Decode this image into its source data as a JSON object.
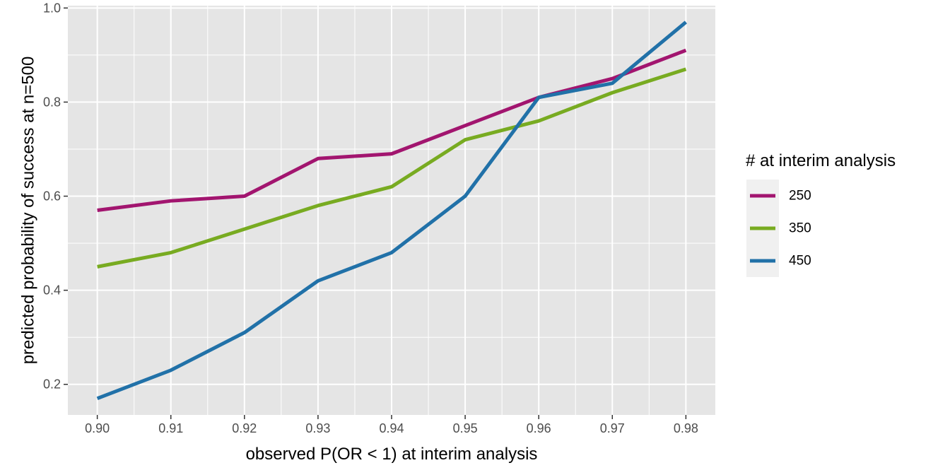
{
  "chart_data": {
    "type": "line",
    "title": "",
    "xlabel": "observed P(OR < 1) at interim analysis",
    "ylabel": "predicted probability of success at n=500",
    "x": [
      0.9,
      0.91,
      0.92,
      0.93,
      0.94,
      0.95,
      0.96,
      0.97,
      0.98
    ],
    "x_tick_labels": [
      "0.90",
      "0.91",
      "0.92",
      "0.93",
      "0.94",
      "0.95",
      "0.96",
      "0.97",
      "0.98"
    ],
    "y_ticks": [
      0.2,
      0.4,
      0.6,
      0.8,
      1.0
    ],
    "y_tick_labels": [
      "0.2",
      "0.4",
      "0.6",
      "0.8",
      "1.0"
    ],
    "xlim": [
      0.896,
      0.984
    ],
    "ylim": [
      0.135,
      1.005
    ],
    "grid": true,
    "legend": {
      "title": "# at interim analysis",
      "placement": "right"
    },
    "series": [
      {
        "name": "250",
        "color": "#A2156F",
        "values": [
          0.57,
          0.59,
          0.6,
          0.68,
          0.69,
          0.75,
          0.81,
          0.85,
          0.91
        ]
      },
      {
        "name": "350",
        "color": "#78AB21",
        "values": [
          0.45,
          0.48,
          0.53,
          0.58,
          0.62,
          0.72,
          0.76,
          0.82,
          0.87
        ]
      },
      {
        "name": "450",
        "color": "#2171A8",
        "values": [
          0.17,
          0.23,
          0.31,
          0.42,
          0.48,
          0.6,
          0.81,
          0.84,
          0.97
        ]
      }
    ],
    "colors": {
      "panel_background": "#E5E5E5",
      "gridline": "#FFFFFF",
      "legend_key_background": "#F0F0F0"
    }
  }
}
